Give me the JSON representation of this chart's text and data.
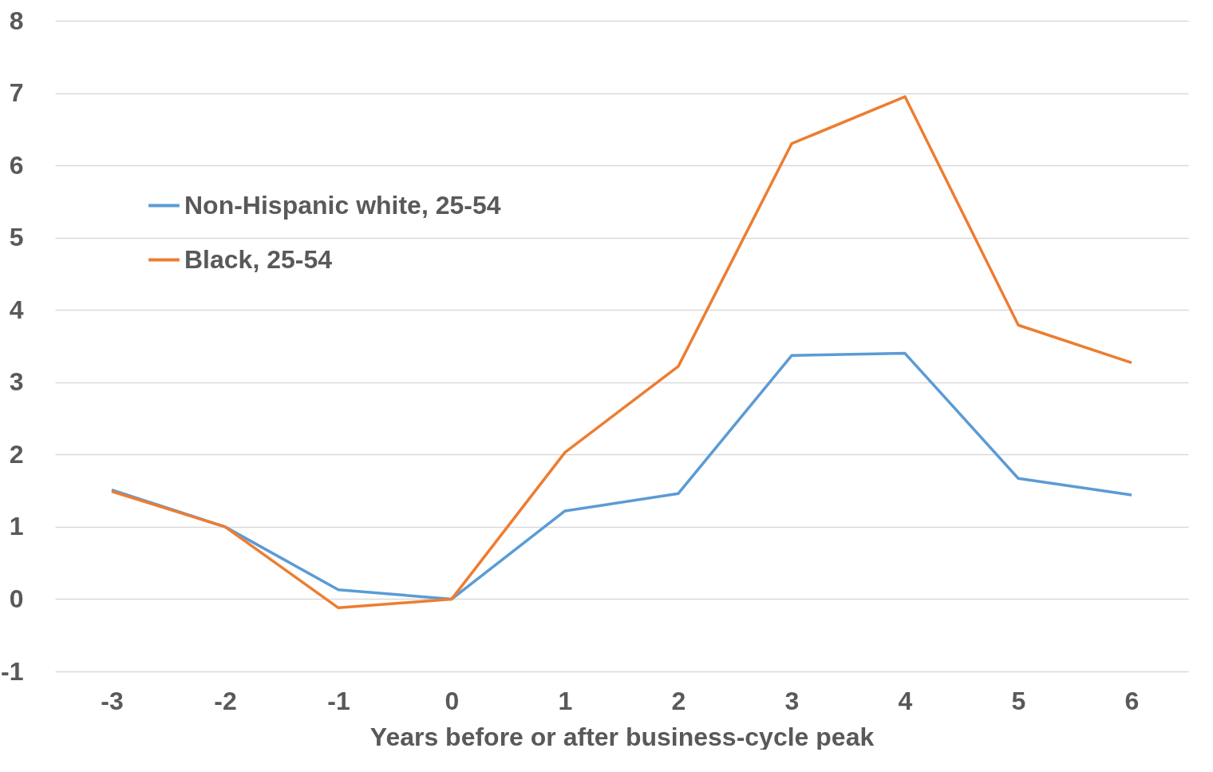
{
  "chart_data": {
    "type": "line",
    "xlabel": "Years before or after business-cycle peak",
    "categories": [
      "-3",
      "-2",
      "-1",
      "0",
      "1",
      "2",
      "3",
      "4",
      "5",
      "6"
    ],
    "series": [
      {
        "name": "Non-Hispanic white, 25-54",
        "color": "#5b9bd5",
        "values": [
          1.51,
          1.0,
          0.13,
          0,
          1.22,
          1.46,
          3.37,
          3.4,
          1.67,
          1.44
        ]
      },
      {
        "name": "Black, 25-54",
        "color": "#ed7d31",
        "values": [
          1.49,
          1.0,
          -0.12,
          0,
          2.03,
          3.22,
          6.3,
          6.95,
          3.79,
          3.27
        ]
      }
    ],
    "ylim": [
      -1,
      8
    ],
    "yticks": [
      -1,
      0,
      1,
      2,
      3,
      4,
      5,
      6,
      7,
      8
    ],
    "grid": "y",
    "legend": "top left",
    "marker": "none",
    "line_style": "solid"
  }
}
